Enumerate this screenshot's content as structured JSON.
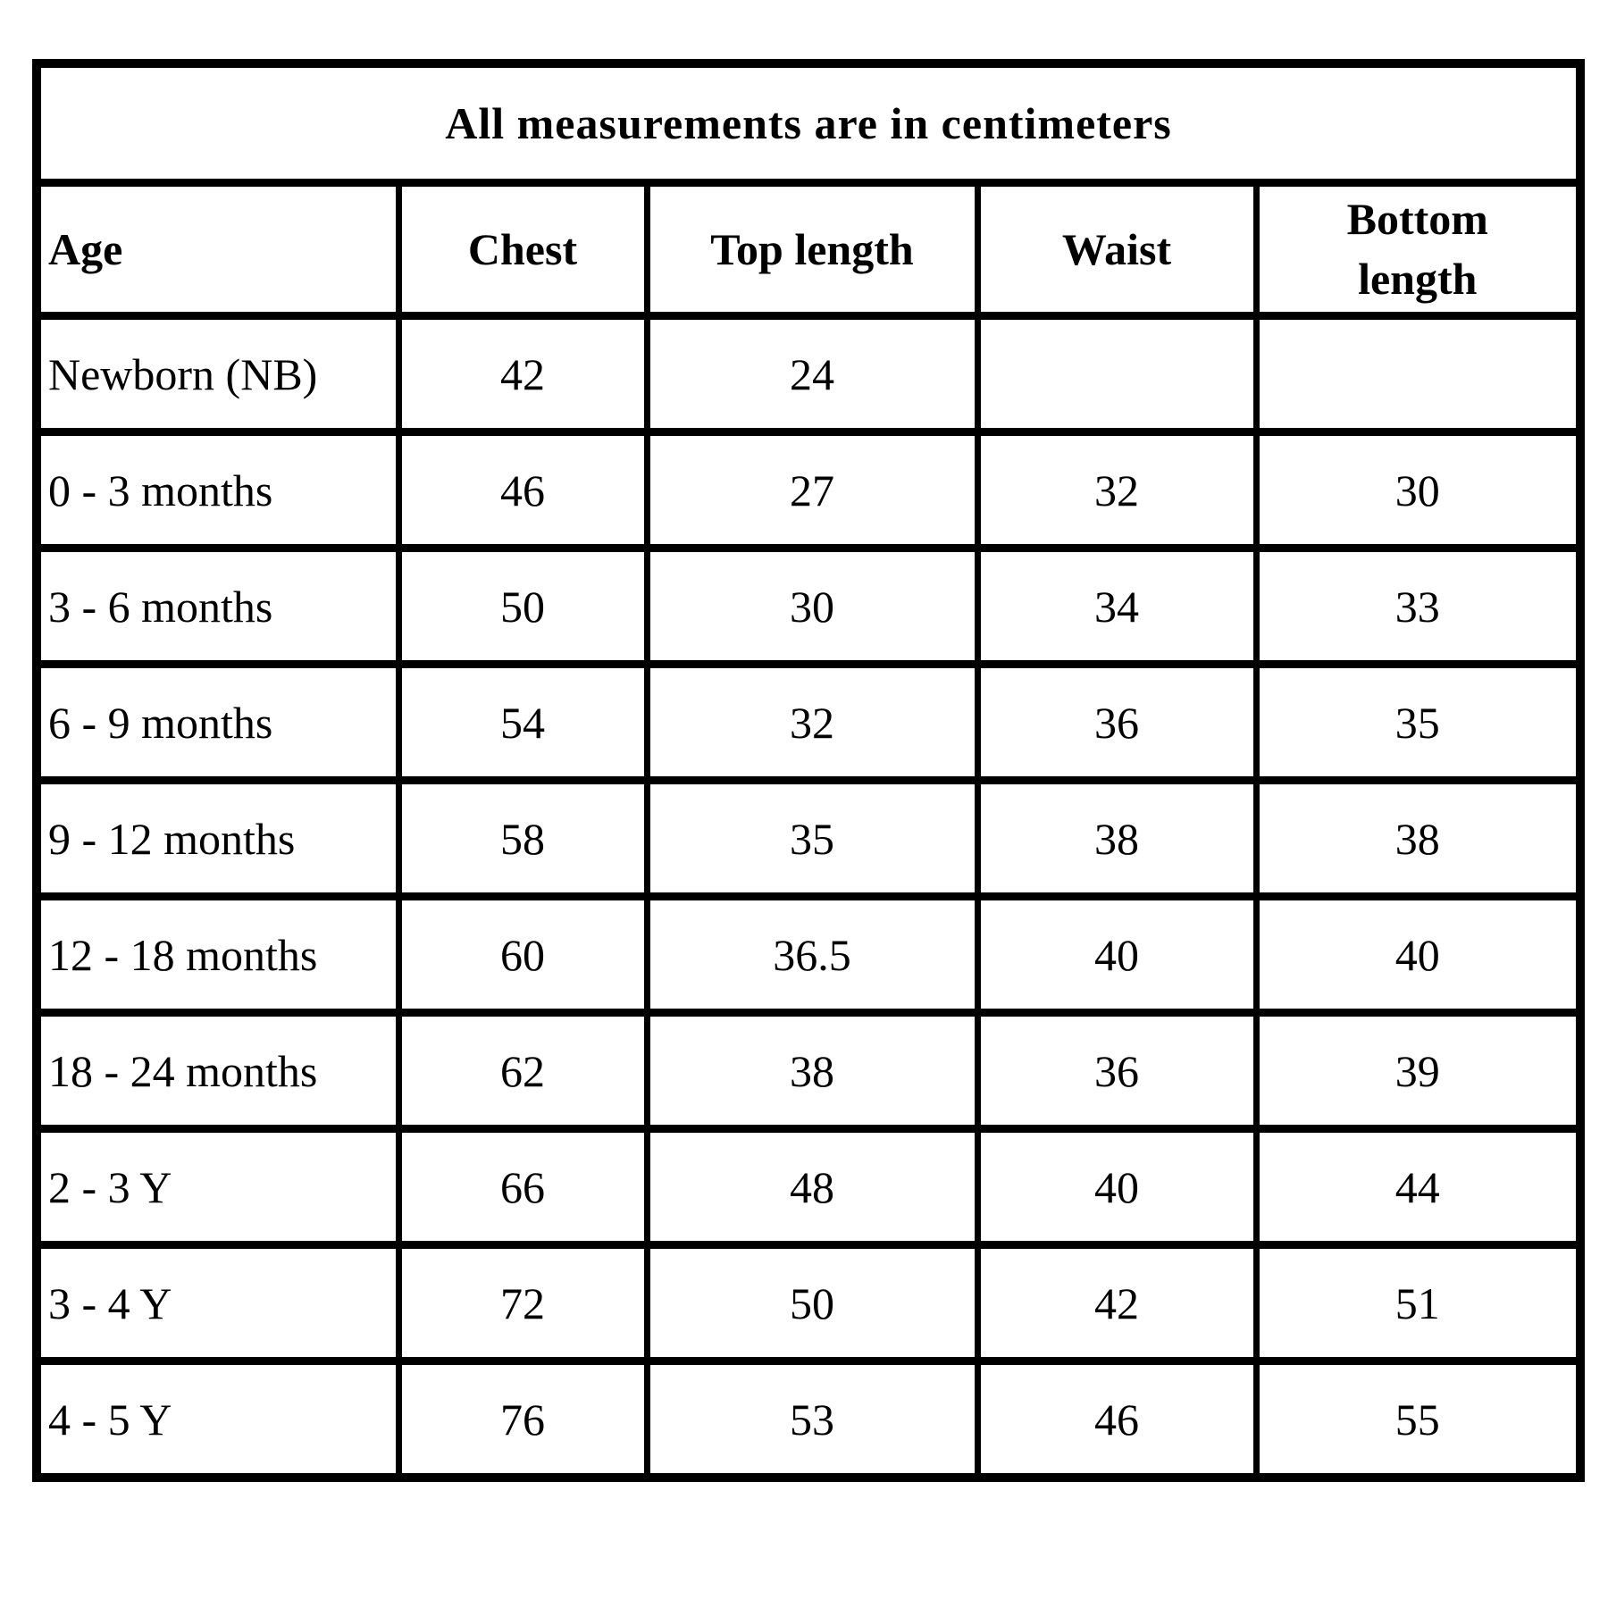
{
  "colors": {
    "border": "#000000",
    "text": "#000000",
    "background": "#ffffff"
  },
  "table": {
    "title": "All measurements are in centimeters",
    "columns": {
      "age": "Age",
      "chest": "Chest",
      "top_length": "Top length",
      "waist": "Waist",
      "bottom_length": "Bottom length"
    },
    "rows": [
      {
        "age": "Newborn (NB)",
        "chest": "42",
        "top_length": "24",
        "waist": "",
        "bottom_length": ""
      },
      {
        "age": "0 - 3 months",
        "chest": "46",
        "top_length": "27",
        "waist": "32",
        "bottom_length": "30"
      },
      {
        "age": "3 - 6 months",
        "chest": "50",
        "top_length": "30",
        "waist": "34",
        "bottom_length": "33"
      },
      {
        "age": "6 - 9 months",
        "chest": "54",
        "top_length": "32",
        "waist": "36",
        "bottom_length": "35"
      },
      {
        "age": "9 - 12 months",
        "chest": "58",
        "top_length": "35",
        "waist": "38",
        "bottom_length": "38"
      },
      {
        "age": "12 - 18 months",
        "chest": "60",
        "top_length": "36.5",
        "waist": "40",
        "bottom_length": "40"
      },
      {
        "age": "18 - 24 months",
        "chest": "62",
        "top_length": "38",
        "waist": "36",
        "bottom_length": "39"
      },
      {
        "age": "2 - 3 Y",
        "chest": "66",
        "top_length": "48",
        "waist": "40",
        "bottom_length": "44"
      },
      {
        "age": "3 - 4 Y",
        "chest": "72",
        "top_length": "50",
        "waist": "42",
        "bottom_length": "51"
      },
      {
        "age": "4 - 5 Y",
        "chest": "76",
        "top_length": "53",
        "waist": "46",
        "bottom_length": "55"
      }
    ]
  },
  "chart_data": {
    "type": "table",
    "title": "All measurements are in centimeters",
    "columns": [
      "Age",
      "Chest",
      "Top length",
      "Waist",
      "Bottom length"
    ],
    "rows": [
      [
        "Newborn (NB)",
        42,
        24,
        null,
        null
      ],
      [
        "0 - 3 months",
        46,
        27,
        32,
        30
      ],
      [
        "3 - 6 months",
        50,
        30,
        34,
        33
      ],
      [
        "6 - 9 months",
        54,
        32,
        36,
        35
      ],
      [
        "9 - 12 months",
        58,
        35,
        38,
        38
      ],
      [
        "12 - 18 months",
        60,
        36.5,
        40,
        40
      ],
      [
        "18 - 24 months",
        62,
        38,
        36,
        39
      ],
      [
        "2 - 3 Y",
        66,
        48,
        40,
        44
      ],
      [
        "3 - 4 Y",
        72,
        50,
        42,
        51
      ],
      [
        "4 - 5 Y",
        76,
        53,
        46,
        55
      ]
    ],
    "units": "centimeters",
    "layout": {
      "grid": true,
      "header_row": true,
      "title_row_spans_all_columns": true
    }
  }
}
